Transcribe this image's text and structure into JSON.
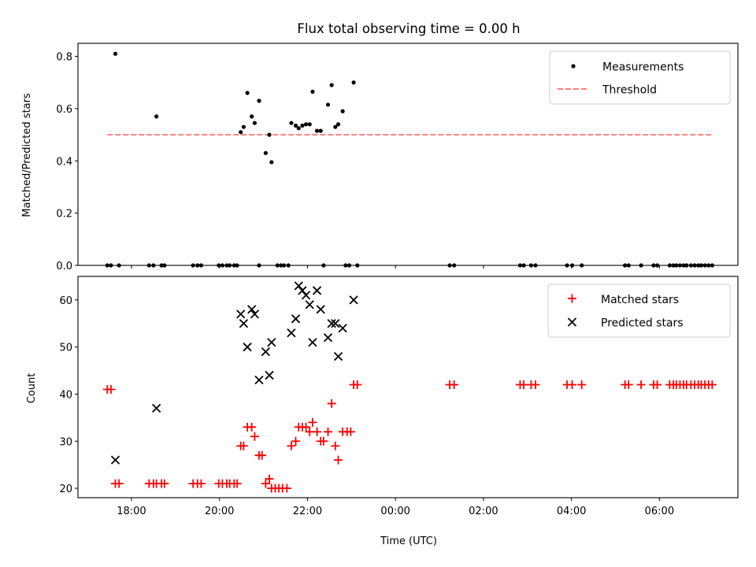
{
  "figure": {
    "title": "Flux total observing time = 0.00 h"
  },
  "chart_data": [
    {
      "type": "scatter",
      "xlabel": "",
      "ylabel": "Matched/Predicted stars",
      "xlim": [
        "2023-01-01T16:47",
        "2023-01-02T07:47"
      ],
      "ylim": [
        0,
        0.85
      ],
      "yticks": [
        0.0,
        0.2,
        0.4,
        0.6,
        0.8
      ],
      "grid": false,
      "legend": "top-right",
      "series": [
        {
          "name": "Measurements",
          "kind": "scatter",
          "color": "#000000",
          "points": [
            [
              "2023-01-01T17:38",
              0.81
            ],
            [
              "2023-01-01T18:34",
              0.57
            ],
            [
              "2023-01-01T20:29",
              0.51
            ],
            [
              "2023-01-01T20:33",
              0.53
            ],
            [
              "2023-01-01T20:38",
              0.66
            ],
            [
              "2023-01-01T20:44",
              0.57
            ],
            [
              "2023-01-01T20:48",
              0.545
            ],
            [
              "2023-01-01T20:54",
              0.63
            ],
            [
              "2023-01-01T21:03",
              0.43
            ],
            [
              "2023-01-01T21:08",
              0.5
            ],
            [
              "2023-01-01T21:11",
              0.395
            ],
            [
              "2023-01-01T21:38",
              0.545
            ],
            [
              "2023-01-01T21:44",
              0.535
            ],
            [
              "2023-01-01T21:48",
              0.525
            ],
            [
              "2023-01-01T21:53",
              0.535
            ],
            [
              "2023-01-01T21:58",
              0.54
            ],
            [
              "2023-01-01T22:03",
              0.54
            ],
            [
              "2023-01-01T22:07",
              0.665
            ],
            [
              "2023-01-01T22:13",
              0.515
            ],
            [
              "2023-01-01T22:18",
              0.515
            ],
            [
              "2023-01-01T22:28",
              0.615
            ],
            [
              "2023-01-01T22:33",
              0.69
            ],
            [
              "2023-01-01T22:38",
              0.53
            ],
            [
              "2023-01-01T22:42",
              0.54
            ],
            [
              "2023-01-01T22:48",
              0.59
            ],
            [
              "2023-01-01T23:03",
              0.7
            ],
            [
              "2023-01-01T17:27",
              0.0
            ],
            [
              "2023-01-01T17:32",
              0.0
            ],
            [
              "2023-01-01T17:43",
              0.0
            ],
            [
              "2023-01-01T18:24",
              0.0
            ],
            [
              "2023-01-01T18:30",
              0.0
            ],
            [
              "2023-01-01T18:41",
              0.0
            ],
            [
              "2023-01-01T18:45",
              0.0
            ],
            [
              "2023-01-01T19:24",
              0.0
            ],
            [
              "2023-01-01T19:30",
              0.0
            ],
            [
              "2023-01-01T19:35",
              0.0
            ],
            [
              "2023-01-01T19:59",
              0.0
            ],
            [
              "2023-01-01T20:04",
              0.0
            ],
            [
              "2023-01-01T20:10",
              0.0
            ],
            [
              "2023-01-01T20:14",
              0.0
            ],
            [
              "2023-01-01T20:20",
              0.0
            ],
            [
              "2023-01-01T20:24",
              0.0
            ],
            [
              "2023-01-01T20:54",
              0.0
            ],
            [
              "2023-01-01T21:19",
              0.0
            ],
            [
              "2023-01-01T21:24",
              0.0
            ],
            [
              "2023-01-01T21:28",
              0.0
            ],
            [
              "2023-01-01T21:34",
              0.0
            ],
            [
              "2023-01-01T22:22",
              0.0
            ],
            [
              "2023-01-01T22:52",
              0.0
            ],
            [
              "2023-01-01T22:57",
              0.0
            ],
            [
              "2023-01-01T23:08",
              0.0
            ],
            [
              "2023-01-02T01:14",
              0.0
            ],
            [
              "2023-01-02T01:20",
              0.0
            ],
            [
              "2023-01-02T02:50",
              0.0
            ],
            [
              "2023-01-02T02:55",
              0.0
            ],
            [
              "2023-01-02T03:05",
              0.0
            ],
            [
              "2023-01-02T03:11",
              0.0
            ],
            [
              "2023-01-02T03:54",
              0.0
            ],
            [
              "2023-01-02T04:01",
              0.0
            ],
            [
              "2023-01-02T04:14",
              0.0
            ],
            [
              "2023-01-02T05:13",
              0.0
            ],
            [
              "2023-01-02T05:18",
              0.0
            ],
            [
              "2023-01-02T05:35",
              0.0
            ],
            [
              "2023-01-02T05:52",
              0.0
            ],
            [
              "2023-01-02T05:57",
              0.0
            ],
            [
              "2023-01-02T06:14",
              0.0
            ],
            [
              "2023-01-02T06:19",
              0.0
            ],
            [
              "2023-01-02T06:23",
              0.0
            ],
            [
              "2023-01-02T06:28",
              0.0
            ],
            [
              "2023-01-02T06:33",
              0.0
            ],
            [
              "2023-01-02T06:37",
              0.0
            ],
            [
              "2023-01-02T06:43",
              0.0
            ],
            [
              "2023-01-02T06:48",
              0.0
            ],
            [
              "2023-01-02T06:53",
              0.0
            ],
            [
              "2023-01-02T06:57",
              0.0
            ],
            [
              "2023-01-02T07:02",
              0.0
            ],
            [
              "2023-01-02T07:07",
              0.0
            ],
            [
              "2023-01-02T07:12",
              0.0
            ]
          ]
        },
        {
          "name": "Threshold",
          "kind": "line",
          "style": "dashed",
          "color": "#ff7f7f",
          "points": [
            [
              "2023-01-01T17:27",
              0.5
            ],
            [
              "2023-01-02T07:12",
              0.5
            ]
          ]
        }
      ]
    },
    {
      "type": "scatter",
      "xlabel": "Time (UTC)",
      "ylabel": "Count",
      "xlim": [
        "2023-01-01T16:47",
        "2023-01-02T07:47"
      ],
      "ylim": [
        18,
        65
      ],
      "yticks": [
        20,
        30,
        40,
        50,
        60
      ],
      "xticks": [
        "18:00",
        "20:00",
        "22:00",
        "00:00",
        "02:00",
        "04:00",
        "06:00"
      ],
      "grid": false,
      "legend": "top-right",
      "series": [
        {
          "name": "Matched stars",
          "marker": "plus",
          "color": "#ff0000",
          "points": [
            [
              "2023-01-01T17:27",
              41
            ],
            [
              "2023-01-01T17:32",
              41
            ],
            [
              "2023-01-01T17:38",
              21
            ],
            [
              "2023-01-01T17:43",
              21
            ],
            [
              "2023-01-01T18:24",
              21
            ],
            [
              "2023-01-01T18:30",
              21
            ],
            [
              "2023-01-01T18:34",
              21
            ],
            [
              "2023-01-01T18:41",
              21
            ],
            [
              "2023-01-01T18:45",
              21
            ],
            [
              "2023-01-01T19:24",
              21
            ],
            [
              "2023-01-01T19:30",
              21
            ],
            [
              "2023-01-01T19:35",
              21
            ],
            [
              "2023-01-01T19:59",
              21
            ],
            [
              "2023-01-01T20:04",
              21
            ],
            [
              "2023-01-01T20:10",
              21
            ],
            [
              "2023-01-01T20:14",
              21
            ],
            [
              "2023-01-01T20:20",
              21
            ],
            [
              "2023-01-01T20:24",
              21
            ],
            [
              "2023-01-01T20:29",
              29
            ],
            [
              "2023-01-01T20:33",
              29
            ],
            [
              "2023-01-01T20:38",
              33
            ],
            [
              "2023-01-01T20:44",
              33
            ],
            [
              "2023-01-01T20:48",
              31
            ],
            [
              "2023-01-01T20:54",
              27
            ],
            [
              "2023-01-01T20:58",
              27
            ],
            [
              "2023-01-01T21:03",
              21
            ],
            [
              "2023-01-01T21:08",
              22
            ],
            [
              "2023-01-01T21:11",
              20
            ],
            [
              "2023-01-01T21:16",
              20
            ],
            [
              "2023-01-01T21:21",
              20
            ],
            [
              "2023-01-01T21:26",
              20
            ],
            [
              "2023-01-01T21:32",
              20
            ],
            [
              "2023-01-01T21:38",
              29
            ],
            [
              "2023-01-01T21:44",
              30
            ],
            [
              "2023-01-01T21:48",
              33
            ],
            [
              "2023-01-01T21:53",
              33
            ],
            [
              "2023-01-01T21:58",
              33
            ],
            [
              "2023-01-01T22:03",
              32
            ],
            [
              "2023-01-01T22:07",
              34
            ],
            [
              "2023-01-01T22:13",
              32
            ],
            [
              "2023-01-01T22:18",
              30
            ],
            [
              "2023-01-01T22:22",
              30
            ],
            [
              "2023-01-01T22:28",
              32
            ],
            [
              "2023-01-01T22:33",
              38
            ],
            [
              "2023-01-01T22:38",
              29
            ],
            [
              "2023-01-01T22:42",
              26
            ],
            [
              "2023-01-01T22:48",
              32
            ],
            [
              "2023-01-01T22:54",
              32
            ],
            [
              "2023-01-01T22:59",
              32
            ],
            [
              "2023-01-01T23:03",
              42
            ],
            [
              "2023-01-01T23:08",
              42
            ],
            [
              "2023-01-02T01:14",
              42
            ],
            [
              "2023-01-02T01:20",
              42
            ],
            [
              "2023-01-02T02:50",
              42
            ],
            [
              "2023-01-02T02:55",
              42
            ],
            [
              "2023-01-02T03:05",
              42
            ],
            [
              "2023-01-02T03:11",
              42
            ],
            [
              "2023-01-02T03:54",
              42
            ],
            [
              "2023-01-02T04:01",
              42
            ],
            [
              "2023-01-02T04:14",
              42
            ],
            [
              "2023-01-02T05:13",
              42
            ],
            [
              "2023-01-02T05:18",
              42
            ],
            [
              "2023-01-02T05:35",
              42
            ],
            [
              "2023-01-02T05:52",
              42
            ],
            [
              "2023-01-02T05:57",
              42
            ],
            [
              "2023-01-02T06:14",
              42
            ],
            [
              "2023-01-02T06:19",
              42
            ],
            [
              "2023-01-02T06:23",
              42
            ],
            [
              "2023-01-02T06:28",
              42
            ],
            [
              "2023-01-02T06:33",
              42
            ],
            [
              "2023-01-02T06:37",
              42
            ],
            [
              "2023-01-02T06:43",
              42
            ],
            [
              "2023-01-02T06:48",
              42
            ],
            [
              "2023-01-02T06:53",
              42
            ],
            [
              "2023-01-02T06:57",
              42
            ],
            [
              "2023-01-02T07:02",
              42
            ],
            [
              "2023-01-02T07:07",
              42
            ],
            [
              "2023-01-02T07:12",
              42
            ]
          ]
        },
        {
          "name": "Predicted stars",
          "marker": "x",
          "color": "#000000",
          "points": [
            [
              "2023-01-01T17:38",
              26
            ],
            [
              "2023-01-01T18:34",
              37
            ],
            [
              "2023-01-01T20:29",
              57
            ],
            [
              "2023-01-01T20:33",
              55
            ],
            [
              "2023-01-01T20:38",
              50
            ],
            [
              "2023-01-01T20:44",
              58
            ],
            [
              "2023-01-01T20:48",
              57
            ],
            [
              "2023-01-01T20:54",
              43
            ],
            [
              "2023-01-01T21:03",
              49
            ],
            [
              "2023-01-01T21:08",
              44
            ],
            [
              "2023-01-01T21:11",
              51
            ],
            [
              "2023-01-01T21:38",
              53
            ],
            [
              "2023-01-01T21:44",
              56
            ],
            [
              "2023-01-01T21:48",
              63
            ],
            [
              "2023-01-01T21:53",
              62
            ],
            [
              "2023-01-01T21:58",
              61
            ],
            [
              "2023-01-01T22:03",
              59
            ],
            [
              "2023-01-01T22:07",
              51
            ],
            [
              "2023-01-01T22:13",
              62
            ],
            [
              "2023-01-01T22:18",
              58
            ],
            [
              "2023-01-01T22:28",
              52
            ],
            [
              "2023-01-01T22:33",
              55
            ],
            [
              "2023-01-01T22:38",
              55
            ],
            [
              "2023-01-01T22:42",
              48
            ],
            [
              "2023-01-01T22:48",
              54
            ],
            [
              "2023-01-01T23:03",
              60
            ]
          ]
        }
      ]
    }
  ]
}
